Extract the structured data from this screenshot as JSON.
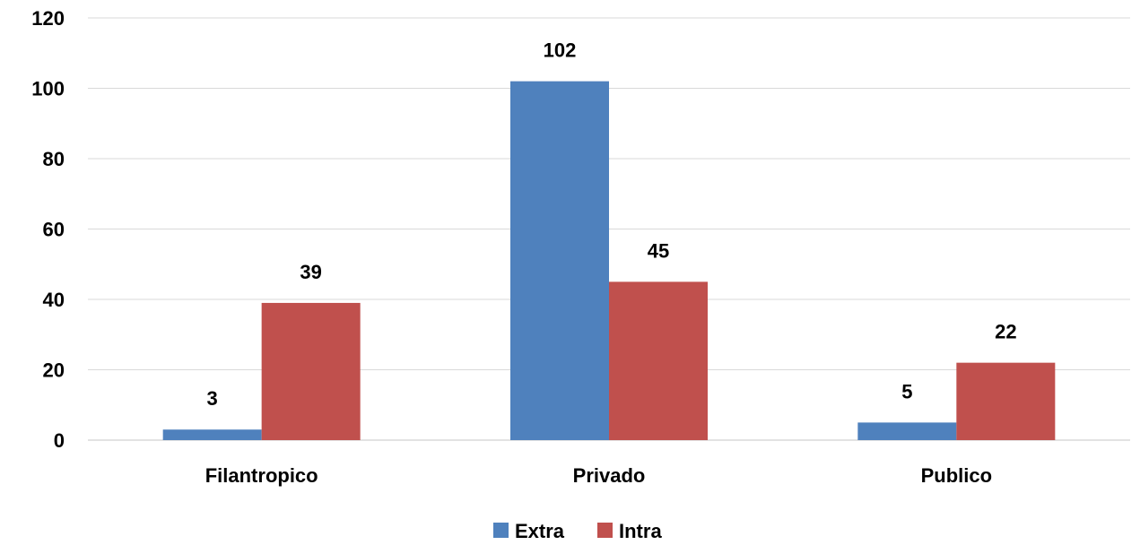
{
  "chart_data": {
    "type": "bar",
    "categories": [
      "Filantropico",
      "Privado",
      "Publico"
    ],
    "series": [
      {
        "name": "Extra",
        "values": [
          3,
          102,
          5
        ],
        "color": "#4f81bd"
      },
      {
        "name": "Intra",
        "values": [
          39,
          45,
          22
        ],
        "color": "#c0504d"
      }
    ],
    "ylim": [
      0,
      120
    ],
    "yticks": [
      0,
      20,
      40,
      60,
      80,
      100,
      120
    ],
    "grid": true,
    "legend_position": "bottom",
    "data_labels": true
  }
}
